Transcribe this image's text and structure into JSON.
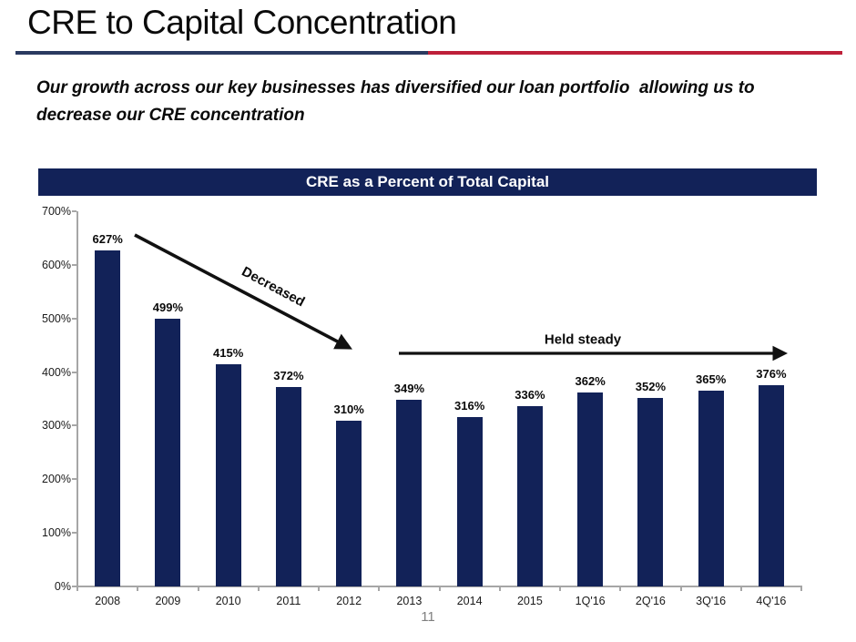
{
  "slide": {
    "title": "CRE to Capital Concentration",
    "subtitle": "Our growth across our key businesses has diversified our loan portfolio  allowing us to\ndecrease our CRE concentration",
    "page_number": "11",
    "divider_left_color": "#2a3a60",
    "divider_right_color": "#be2039"
  },
  "chart_data": {
    "type": "bar",
    "title": "CRE as a Percent of Total Capital",
    "title_band_color": "#122258",
    "bar_color": "#122258",
    "categories": [
      "2008",
      "2009",
      "2010",
      "2011",
      "2012",
      "2013",
      "2014",
      "2015",
      "1Q'16",
      "2Q'16",
      "3Q'16",
      "4Q'16"
    ],
    "values": [
      627,
      499,
      415,
      372,
      310,
      349,
      316,
      336,
      362,
      352,
      365,
      376
    ],
    "value_labels": [
      "627%",
      "499%",
      "415%",
      "372%",
      "310%",
      "349%",
      "316%",
      "336%",
      "362%",
      "352%",
      "365%",
      "376%"
    ],
    "xlabel": "",
    "ylabel": "",
    "ylim": [
      0,
      700
    ],
    "ytick_step": 100,
    "ytick_labels": [
      "0%",
      "100%",
      "200%",
      "300%",
      "400%",
      "500%",
      "600%",
      "700%"
    ],
    "grid": false,
    "legend": null,
    "annotations": [
      {
        "text": "Decreased",
        "type": "arrow-down-right"
      },
      {
        "text": "Held steady",
        "type": "arrow-right"
      }
    ]
  }
}
